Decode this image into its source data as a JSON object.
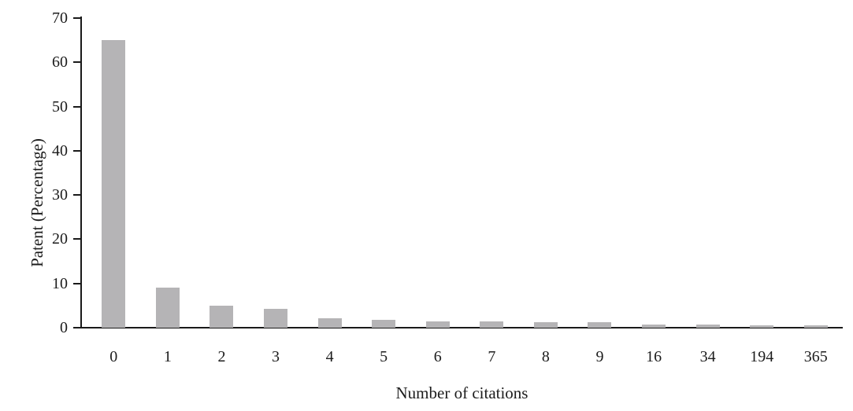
{
  "chart_data": {
    "type": "bar",
    "title": "",
    "xlabel": "Number of citations",
    "ylabel": "Patent (Percentage)",
    "categories": [
      "0",
      "1",
      "2",
      "3",
      "4",
      "5",
      "6",
      "7",
      "8",
      "9",
      "16",
      "34",
      "194",
      "365"
    ],
    "values": [
      65,
      9,
      5,
      4.3,
      2.2,
      1.7,
      1.4,
      1.4,
      1.2,
      1.2,
      0.8,
      0.8,
      0.5,
      0.5
    ],
    "ylim": [
      0,
      70
    ],
    "yticks": [
      0,
      10,
      20,
      30,
      40,
      50,
      60,
      70
    ],
    "grid": false,
    "legend_position": "none",
    "bar_color": "#b5b4b6",
    "axis_color": "#1a1a1a",
    "text_color": "#1c1c1c",
    "background_color": "#ffffff"
  }
}
